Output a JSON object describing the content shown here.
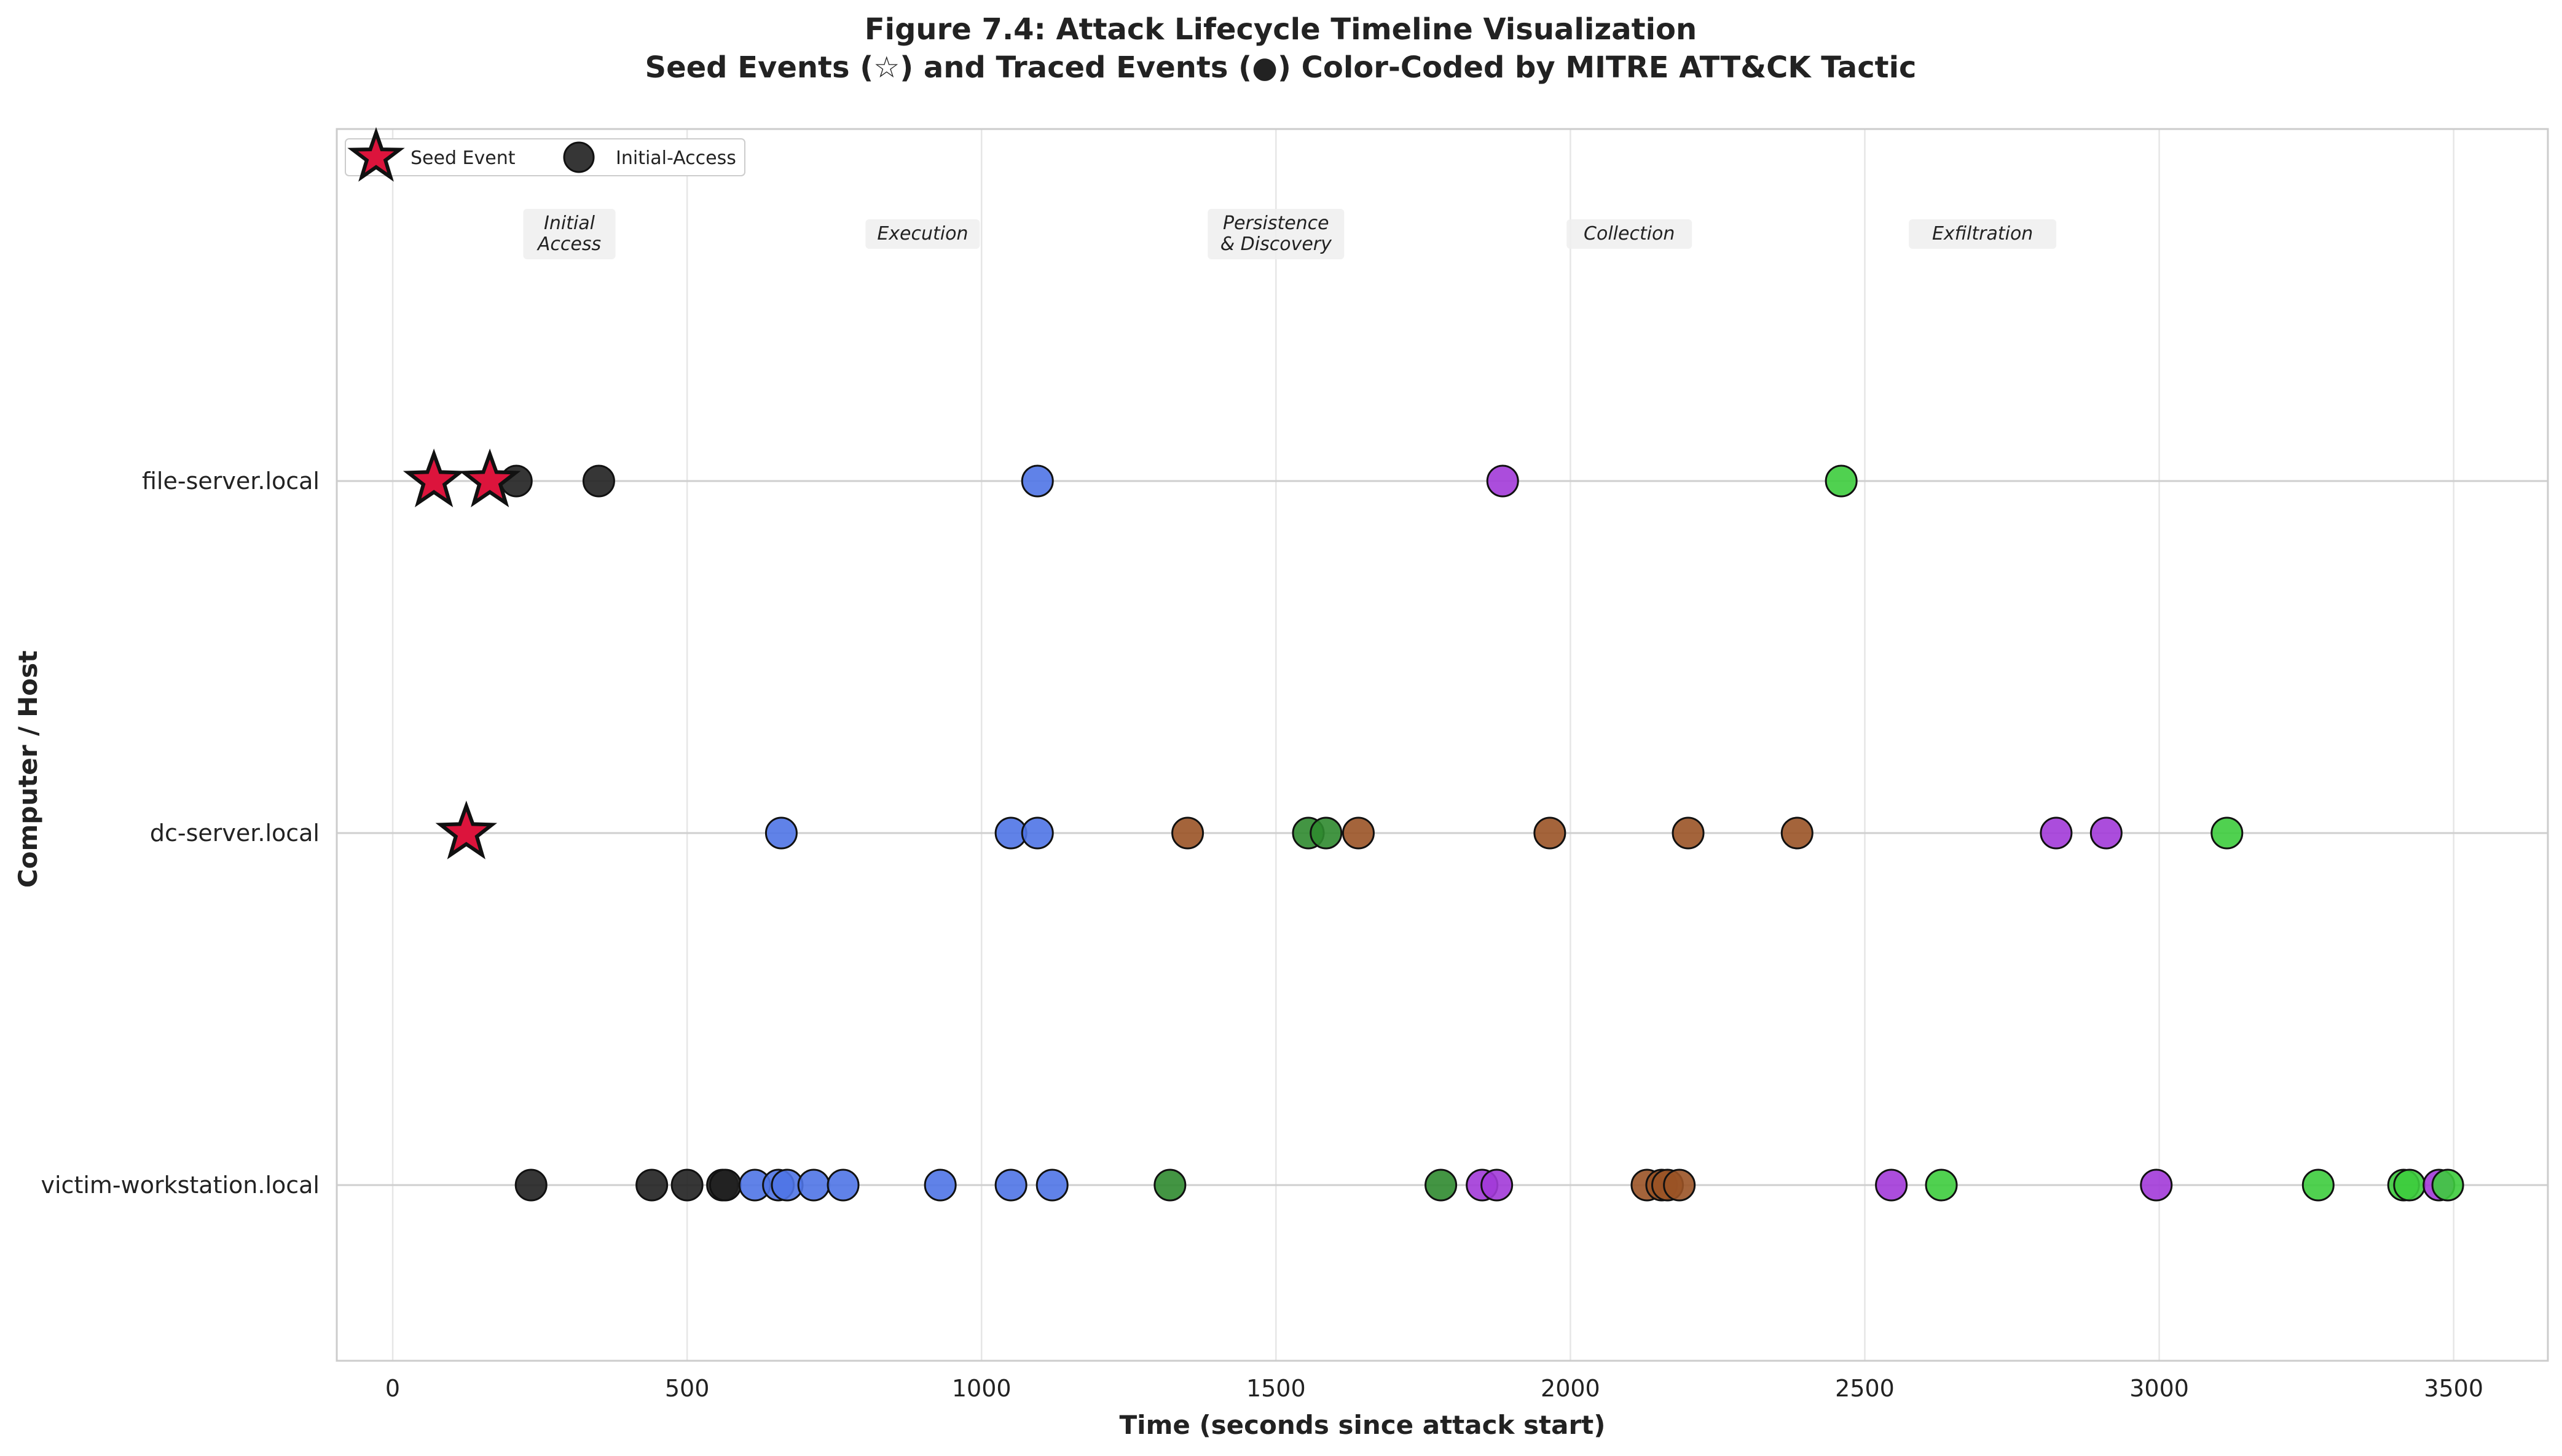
{
  "chart_data": {
    "type": "scatter",
    "title_line1": "Figure 7.4: Attack Lifecycle Timeline Visualization",
    "title_line2": "Seed Events (☆) and Traced Events (●) Color-Coded by MITRE ATT&CK Tactic",
    "xlabel": "Time (seconds since attack start)",
    "ylabel": "Computer / Host",
    "xlim": [
      -95,
      3660
    ],
    "x_ticks": [
      0,
      500,
      1000,
      1500,
      2000,
      2500,
      3000,
      3500
    ],
    "hosts": [
      "victim-workstation.local",
      "dc-server.local",
      "file-server.local"
    ],
    "grid": true,
    "legend": {
      "placement": "top-left",
      "entries": [
        {
          "label": "Seed Event",
          "marker": "star"
        },
        {
          "label": "Initial-Access",
          "marker": "circle"
        }
      ]
    },
    "phase_annotations": [
      {
        "x": 300,
        "lines": [
          "Initial",
          "Access"
        ]
      },
      {
        "x": 900,
        "lines": [
          "Execution"
        ]
      },
      {
        "x": 1500,
        "lines": [
          "Persistence",
          "& Discovery"
        ]
      },
      {
        "x": 2100,
        "lines": [
          "Collection"
        ]
      },
      {
        "x": 2700,
        "lines": [
          "Exfiltration"
        ]
      }
    ],
    "tactic_colors": {
      "initial-access": "#202020",
      "execution": "#4f74e6",
      "persistence": "#2f8a2f",
      "discovery": "#9a5326",
      "collection": "#a23ad8",
      "exfiltration": "#3dcc3d",
      "seed": "#dc143c"
    },
    "seed_events": [
      {
        "host": "file-server.local",
        "x": 70
      },
      {
        "host": "file-server.local",
        "x": 165
      },
      {
        "host": "dc-server.local",
        "x": 125
      }
    ],
    "traced_events": [
      {
        "host": "file-server.local",
        "x": 210,
        "tactic": "initial-access"
      },
      {
        "host": "file-server.local",
        "x": 350,
        "tactic": "initial-access"
      },
      {
        "host": "file-server.local",
        "x": 1095,
        "tactic": "execution"
      },
      {
        "host": "file-server.local",
        "x": 1885,
        "tactic": "collection"
      },
      {
        "host": "file-server.local",
        "x": 2460,
        "tactic": "exfiltration"
      },
      {
        "host": "dc-server.local",
        "x": 660,
        "tactic": "execution"
      },
      {
        "host": "dc-server.local",
        "x": 1050,
        "tactic": "execution"
      },
      {
        "host": "dc-server.local",
        "x": 1095,
        "tactic": "execution"
      },
      {
        "host": "dc-server.local",
        "x": 1350,
        "tactic": "discovery"
      },
      {
        "host": "dc-server.local",
        "x": 1555,
        "tactic": "persistence"
      },
      {
        "host": "dc-server.local",
        "x": 1585,
        "tactic": "persistence"
      },
      {
        "host": "dc-server.local",
        "x": 1640,
        "tactic": "discovery"
      },
      {
        "host": "dc-server.local",
        "x": 1965,
        "tactic": "discovery"
      },
      {
        "host": "dc-server.local",
        "x": 2200,
        "tactic": "discovery"
      },
      {
        "host": "dc-server.local",
        "x": 2385,
        "tactic": "discovery"
      },
      {
        "host": "dc-server.local",
        "x": 2825,
        "tactic": "collection"
      },
      {
        "host": "dc-server.local",
        "x": 2910,
        "tactic": "collection"
      },
      {
        "host": "dc-server.local",
        "x": 3115,
        "tactic": "exfiltration"
      },
      {
        "host": "victim-workstation.local",
        "x": 235,
        "tactic": "initial-access"
      },
      {
        "host": "victim-workstation.local",
        "x": 440,
        "tactic": "initial-access"
      },
      {
        "host": "victim-workstation.local",
        "x": 500,
        "tactic": "initial-access"
      },
      {
        "host": "victim-workstation.local",
        "x": 560,
        "tactic": "initial-access"
      },
      {
        "host": "victim-workstation.local",
        "x": 565,
        "tactic": "initial-access"
      },
      {
        "host": "victim-workstation.local",
        "x": 615,
        "tactic": "execution"
      },
      {
        "host": "victim-workstation.local",
        "x": 655,
        "tactic": "execution"
      },
      {
        "host": "victim-workstation.local",
        "x": 670,
        "tactic": "execution"
      },
      {
        "host": "victim-workstation.local",
        "x": 715,
        "tactic": "execution"
      },
      {
        "host": "victim-workstation.local",
        "x": 765,
        "tactic": "execution"
      },
      {
        "host": "victim-workstation.local",
        "x": 930,
        "tactic": "execution"
      },
      {
        "host": "victim-workstation.local",
        "x": 1050,
        "tactic": "execution"
      },
      {
        "host": "victim-workstation.local",
        "x": 1120,
        "tactic": "execution"
      },
      {
        "host": "victim-workstation.local",
        "x": 1320,
        "tactic": "persistence"
      },
      {
        "host": "victim-workstation.local",
        "x": 1780,
        "tactic": "persistence"
      },
      {
        "host": "victim-workstation.local",
        "x": 1850,
        "tactic": "collection"
      },
      {
        "host": "victim-workstation.local",
        "x": 1875,
        "tactic": "collection"
      },
      {
        "host": "victim-workstation.local",
        "x": 2130,
        "tactic": "discovery"
      },
      {
        "host": "victim-workstation.local",
        "x": 2155,
        "tactic": "discovery"
      },
      {
        "host": "victim-workstation.local",
        "x": 2165,
        "tactic": "discovery"
      },
      {
        "host": "victim-workstation.local",
        "x": 2185,
        "tactic": "discovery"
      },
      {
        "host": "victim-workstation.local",
        "x": 2545,
        "tactic": "collection"
      },
      {
        "host": "victim-workstation.local",
        "x": 2630,
        "tactic": "exfiltration"
      },
      {
        "host": "victim-workstation.local",
        "x": 2995,
        "tactic": "collection"
      },
      {
        "host": "victim-workstation.local",
        "x": 3270,
        "tactic": "exfiltration"
      },
      {
        "host": "victim-workstation.local",
        "x": 3415,
        "tactic": "exfiltration"
      },
      {
        "host": "victim-workstation.local",
        "x": 3425,
        "tactic": "exfiltration"
      },
      {
        "host": "victim-workstation.local",
        "x": 3475,
        "tactic": "collection"
      },
      {
        "host": "victim-workstation.local",
        "x": 3490,
        "tactic": "exfiltration"
      }
    ]
  }
}
